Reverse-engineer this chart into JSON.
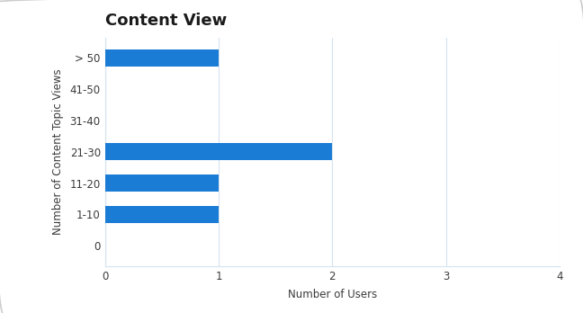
{
  "title": "Content View",
  "categories": [
    "0",
    "1-10",
    "11-20",
    "21-30",
    "31-40",
    "41-50",
    "> 50"
  ],
  "values": [
    0,
    1,
    1,
    2,
    0,
    0,
    1
  ],
  "bar_color": "#1b7cd6",
  "zero_line_color": "#7ab4e0",
  "xlabel": "Number of Users",
  "ylabel": "Number of Content Topic Views",
  "xlim": [
    0,
    4
  ],
  "xticks": [
    0,
    1,
    2,
    3,
    4
  ],
  "title_fontsize": 13,
  "label_fontsize": 8.5,
  "tick_fontsize": 8.5,
  "background_color": "#ffffff",
  "grid_color": "#d5e3f0",
  "bar_height": 0.55,
  "border_color": "#cccccc",
  "text_color": "#3a3a3a"
}
